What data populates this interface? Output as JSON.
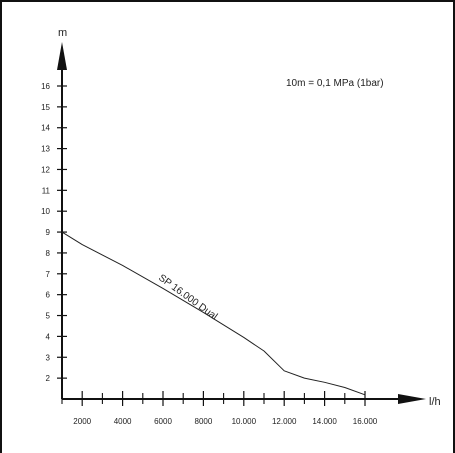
{
  "chart_data": {
    "type": "line",
    "ylabel": "m",
    "xlabel": "l/h",
    "annotation": "10m = 0,1 MPa (1bar)",
    "series": [
      {
        "name": "SP 16.000 Dual",
        "x": [
          1000,
          2000,
          4000,
          6000,
          8000,
          10000,
          11000,
          12000,
          13000,
          14000,
          15000,
          16000
        ],
        "y": [
          9.0,
          8.4,
          7.4,
          6.3,
          5.15,
          3.95,
          3.3,
          2.35,
          2.0,
          1.8,
          1.55,
          1.2
        ]
      }
    ],
    "x_ticks": [
      "2000",
      "4000",
      "6000",
      "8000",
      "10.000",
      "12.000",
      "14.000",
      "16.000"
    ],
    "y_ticks": [
      "2",
      "3",
      "4",
      "5",
      "6",
      "7",
      "8",
      "9",
      "10",
      "11",
      "12",
      "13",
      "14",
      "15",
      "16"
    ],
    "xlim": [
      1000,
      16000
    ],
    "ylim": [
      1,
      16
    ]
  }
}
